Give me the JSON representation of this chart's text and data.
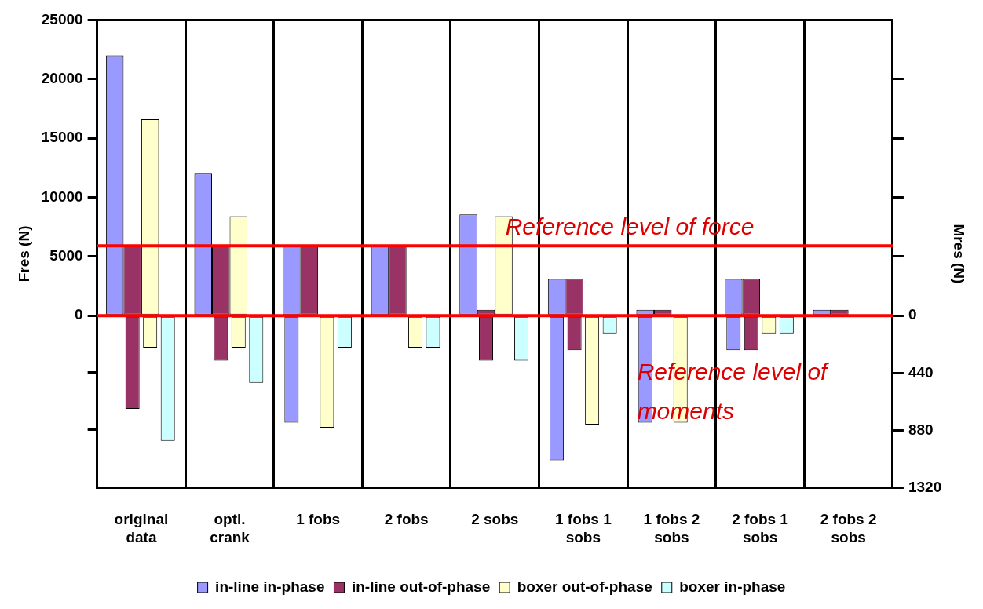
{
  "chart_data": {
    "type": "bar",
    "xlabel": null,
    "ylabel": "Fres (N)",
    "y2label": "Mres (N)",
    "categories": [
      "original data",
      "opti. crank",
      "1 fobs",
      "2 fobs",
      "2 sobs",
      "1 fobs 1 sobs",
      "1 fobs 2 sobs",
      "2 fobs 1 sobs",
      "2 fobs 2 sobs"
    ],
    "series": [
      {
        "name": "in-line in-phase",
        "color": "#9999ff",
        "values": [
          22000,
          12000,
          5900,
          5900,
          8550,
          3100,
          500,
          3100,
          500
        ]
      },
      {
        "name": "in-line out-of-phase",
        "color": "#993366",
        "values": [
          5900,
          5900,
          5900,
          5900,
          500,
          3100,
          500,
          3100,
          500
        ]
      },
      {
        "name": "boxer out-of-phase",
        "color": "#ffffcc",
        "values": [
          16600,
          8400,
          0,
          0,
          8400,
          0,
          0,
          0,
          0
        ]
      },
      {
        "name": "boxer in-phase",
        "color": "#ccffff",
        "values": [
          0,
          0,
          0,
          0,
          0,
          0,
          0,
          0,
          0
        ]
      },
      {
        "color": "#9999ff",
        "axis": "y2",
        "values": [
          0,
          0,
          820,
          0,
          0,
          1110,
          820,
          265,
          0
        ]
      },
      {
        "color": "#993366",
        "axis": "y2",
        "values": [
          715,
          345,
          0,
          0,
          345,
          265,
          0,
          265,
          0
        ]
      },
      {
        "color": "#ffffcc",
        "axis": "y2",
        "values": [
          245,
          245,
          860,
          245,
          0,
          835,
          820,
          135,
          0
        ]
      },
      {
        "color": "#ccffff",
        "axis": "y2",
        "values": [
          960,
          515,
          245,
          245,
          345,
          135,
          0,
          135,
          0
        ]
      }
    ],
    "ylim": [
      -14540,
      25000
    ],
    "yticks": [
      {
        "value": -9640,
        "label": null
      },
      {
        "value": -4800,
        "label": null
      },
      0,
      5000,
      10000,
      15000,
      20000,
      25000
    ],
    "y2lim": [
      1320,
      -2270
    ],
    "y2ticks": [
      0,
      440,
      880,
      1320,
      {
        "value": -454,
        "label": null
      },
      {
        "value": -908,
        "label": null
      },
      {
        "value": -1362,
        "label": null
      },
      {
        "value": -1816,
        "label": null
      }
    ],
    "ref_lines": [
      {
        "axis": "y",
        "value": 5900,
        "label": "Reference level of force",
        "color": "#ff0000"
      },
      {
        "axis": "y",
        "value": 0,
        "label": "Reference level of moments",
        "color": "#ff0000"
      }
    ],
    "grid": "x",
    "legend": "bottom"
  }
}
